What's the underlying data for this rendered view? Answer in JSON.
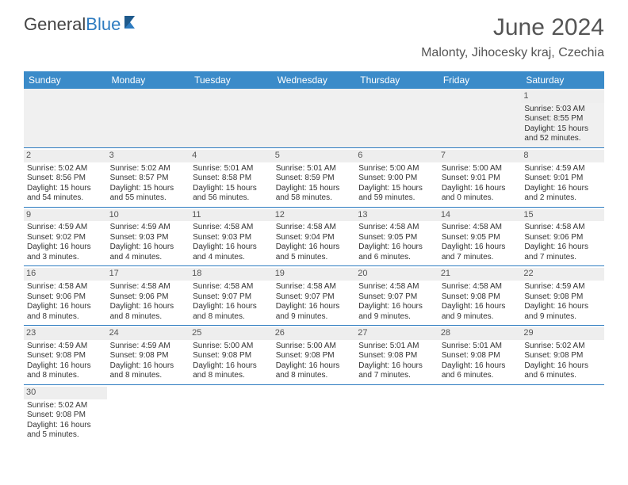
{
  "logo": {
    "text1": "General",
    "text2": "Blue"
  },
  "colors": {
    "header_bg": "#3b8bc9",
    "header_text": "#ffffff",
    "border": "#2d7bc0",
    "daynum_bg": "#eeeeee",
    "logo_blue": "#2d7bc0"
  },
  "title": "June 2024",
  "location": "Malonty, Jihocesky kraj, Czechia",
  "weekdays": [
    "Sunday",
    "Monday",
    "Tuesday",
    "Wednesday",
    "Thursday",
    "Friday",
    "Saturday"
  ],
  "weeks": [
    [
      null,
      null,
      null,
      null,
      null,
      null,
      {
        "d": "1",
        "sr": "5:03 AM",
        "ss": "8:55 PM",
        "dl": "15 hours and 52 minutes."
      }
    ],
    [
      {
        "d": "2",
        "sr": "5:02 AM",
        "ss": "8:56 PM",
        "dl": "15 hours and 54 minutes."
      },
      {
        "d": "3",
        "sr": "5:02 AM",
        "ss": "8:57 PM",
        "dl": "15 hours and 55 minutes."
      },
      {
        "d": "4",
        "sr": "5:01 AM",
        "ss": "8:58 PM",
        "dl": "15 hours and 56 minutes."
      },
      {
        "d": "5",
        "sr": "5:01 AM",
        "ss": "8:59 PM",
        "dl": "15 hours and 58 minutes."
      },
      {
        "d": "6",
        "sr": "5:00 AM",
        "ss": "9:00 PM",
        "dl": "15 hours and 59 minutes."
      },
      {
        "d": "7",
        "sr": "5:00 AM",
        "ss": "9:01 PM",
        "dl": "16 hours and 0 minutes."
      },
      {
        "d": "8",
        "sr": "4:59 AM",
        "ss": "9:01 PM",
        "dl": "16 hours and 2 minutes."
      }
    ],
    [
      {
        "d": "9",
        "sr": "4:59 AM",
        "ss": "9:02 PM",
        "dl": "16 hours and 3 minutes."
      },
      {
        "d": "10",
        "sr": "4:59 AM",
        "ss": "9:03 PM",
        "dl": "16 hours and 4 minutes."
      },
      {
        "d": "11",
        "sr": "4:58 AM",
        "ss": "9:03 PM",
        "dl": "16 hours and 4 minutes."
      },
      {
        "d": "12",
        "sr": "4:58 AM",
        "ss": "9:04 PM",
        "dl": "16 hours and 5 minutes."
      },
      {
        "d": "13",
        "sr": "4:58 AM",
        "ss": "9:05 PM",
        "dl": "16 hours and 6 minutes."
      },
      {
        "d": "14",
        "sr": "4:58 AM",
        "ss": "9:05 PM",
        "dl": "16 hours and 7 minutes."
      },
      {
        "d": "15",
        "sr": "4:58 AM",
        "ss": "9:06 PM",
        "dl": "16 hours and 7 minutes."
      }
    ],
    [
      {
        "d": "16",
        "sr": "4:58 AM",
        "ss": "9:06 PM",
        "dl": "16 hours and 8 minutes."
      },
      {
        "d": "17",
        "sr": "4:58 AM",
        "ss": "9:06 PM",
        "dl": "16 hours and 8 minutes."
      },
      {
        "d": "18",
        "sr": "4:58 AM",
        "ss": "9:07 PM",
        "dl": "16 hours and 8 minutes."
      },
      {
        "d": "19",
        "sr": "4:58 AM",
        "ss": "9:07 PM",
        "dl": "16 hours and 9 minutes."
      },
      {
        "d": "20",
        "sr": "4:58 AM",
        "ss": "9:07 PM",
        "dl": "16 hours and 9 minutes."
      },
      {
        "d": "21",
        "sr": "4:58 AM",
        "ss": "9:08 PM",
        "dl": "16 hours and 9 minutes."
      },
      {
        "d": "22",
        "sr": "4:59 AM",
        "ss": "9:08 PM",
        "dl": "16 hours and 9 minutes."
      }
    ],
    [
      {
        "d": "23",
        "sr": "4:59 AM",
        "ss": "9:08 PM",
        "dl": "16 hours and 8 minutes."
      },
      {
        "d": "24",
        "sr": "4:59 AM",
        "ss": "9:08 PM",
        "dl": "16 hours and 8 minutes."
      },
      {
        "d": "25",
        "sr": "5:00 AM",
        "ss": "9:08 PM",
        "dl": "16 hours and 8 minutes."
      },
      {
        "d": "26",
        "sr": "5:00 AM",
        "ss": "9:08 PM",
        "dl": "16 hours and 8 minutes."
      },
      {
        "d": "27",
        "sr": "5:01 AM",
        "ss": "9:08 PM",
        "dl": "16 hours and 7 minutes."
      },
      {
        "d": "28",
        "sr": "5:01 AM",
        "ss": "9:08 PM",
        "dl": "16 hours and 6 minutes."
      },
      {
        "d": "29",
        "sr": "5:02 AM",
        "ss": "9:08 PM",
        "dl": "16 hours and 6 minutes."
      }
    ],
    [
      {
        "d": "30",
        "sr": "5:02 AM",
        "ss": "9:08 PM",
        "dl": "16 hours and 5 minutes."
      },
      null,
      null,
      null,
      null,
      null,
      null
    ]
  ],
  "labels": {
    "sunrise": "Sunrise:",
    "sunset": "Sunset:",
    "daylight": "Daylight:"
  }
}
